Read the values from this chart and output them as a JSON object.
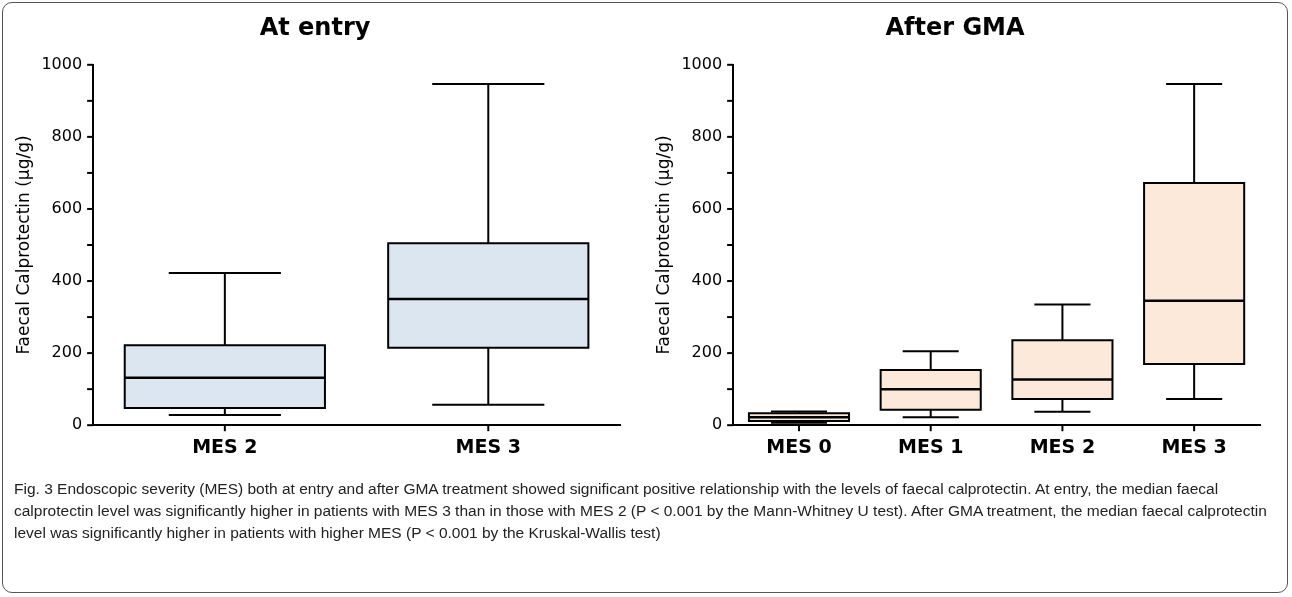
{
  "chart_data": [
    {
      "type": "box",
      "title": "At entry",
      "ylabel": "Faecal Calprotectin (µg/g)",
      "categories": [
        "MES 2",
        "MES 3"
      ],
      "color": "#dce6f1",
      "ylim": [
        0,
        1000
      ],
      "yticks": [
        0,
        {
          "value": 100,
          "label": null
        },
        200,
        {
          "value": 300,
          "label": null
        },
        400,
        {
          "value": 500,
          "label": null
        },
        600,
        {
          "value": 700,
          "label": null
        },
        800,
        {
          "value": 900,
          "label": null
        },
        1000
      ],
      "grid": false,
      "boxes": [
        {
          "low": 28,
          "q1": 48,
          "median": 132,
          "q3": 222,
          "high": 422
        },
        {
          "low": 57,
          "q1": 215,
          "median": 350,
          "q3": 505,
          "high": 947
        }
      ]
    },
    {
      "type": "box",
      "title": "After GMA",
      "ylabel": "Faecal Calprotectin (µg/g)",
      "categories": [
        "MES 0",
        "MES 1",
        "MES 2",
        "MES 3"
      ],
      "color": "#fde9d9",
      "ylim": [
        0,
        1000
      ],
      "yticks": [
        0,
        {
          "value": 100,
          "label": null
        },
        200,
        {
          "value": 300,
          "label": null
        },
        400,
        {
          "value": 500,
          "label": null
        },
        600,
        {
          "value": 700,
          "label": null
        },
        800,
        {
          "value": 900,
          "label": null
        },
        1000
      ],
      "grid": false,
      "boxes": [
        {
          "low": 7,
          "q1": 12,
          "median": 22,
          "q3": 33,
          "high": 38
        },
        {
          "low": 22,
          "q1": 43,
          "median": 100,
          "q3": 153,
          "high": 205
        },
        {
          "low": 37,
          "q1": 73,
          "median": 127,
          "q3": 236,
          "high": 335
        },
        {
          "low": 73,
          "q1": 170,
          "median": 345,
          "q3": 672,
          "high": 947
        }
      ],
      "annotations": [
        "Fig. 3 Endoscopic severity (MES) both at entry and after GMA treatment showed significant positive relationship with the levels of faecal calprotectin. At entry, the median faecal calprotectin level was significantly higher in patients with MES 3 than in those with MES 2 (P < 0.001 by the Mann-Whitney U test). After GMA treatment, the median faecal calprotectin level was significantly higher in patients with higher MES (P < 0.001 by the Kruskal-Wallis test)"
      ]
    }
  ]
}
